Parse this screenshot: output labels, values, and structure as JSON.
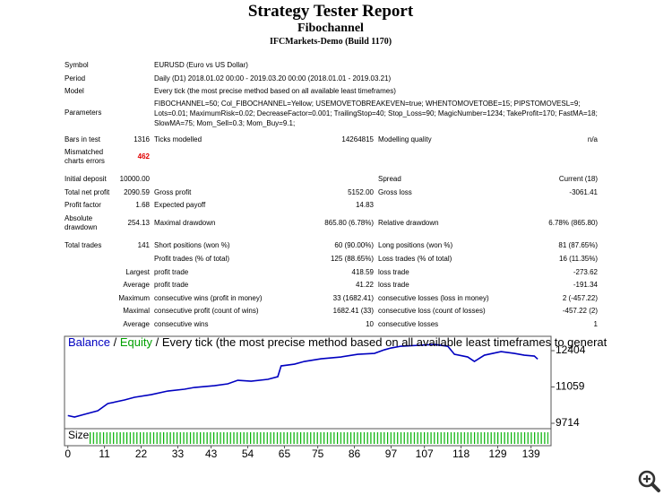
{
  "header": {
    "title": "Strategy Tester Report",
    "subtitle": "Fibochannel",
    "server": "IFCMarkets-Demo (Build 1170)"
  },
  "info": [
    {
      "label": "Symbol",
      "value": "EURUSD (Euro vs US Dollar)"
    },
    {
      "label": "Period",
      "value": "Daily (D1) 2018.01.02 00:00 - 2019.03.20 00:00 (2018.01.01 - 2019.03.21)"
    },
    {
      "label": "Model",
      "value": "Every tick (the most precise method based on all available least timeframes)"
    },
    {
      "label": "Parameters",
      "value": "FIBOCHANNEL=50; Col_FIBOCHANNEL=Yellow; USEMOVETOBREAKEVEN=true; WHENTOMOVETOBE=15; PIPSTOMOVESL=9; Lots=0.01; MaximumRisk=0.02; DecreaseFactor=0.001; TrailingStop=40; Stop_Loss=90; MagicNumber=1234; TakeProfit=170; FastMA=18; SlowMA=75; Mom_Sell=0.3; Mom_Buy=9.1;"
    }
  ],
  "rows": [
    {
      "c1": "Bars in test",
      "c2": "1316",
      "c3": "Ticks modelled",
      "c4": "14264815",
      "c5": "Modelling quality",
      "c6": "n/a"
    },
    {
      "c1": "Mismatched charts errors",
      "c2": "462"
    },
    {
      "c1": "Initial deposit",
      "c2": "10000.00",
      "c5": "Spread",
      "c6": "Current (18)"
    },
    {
      "c1": "Total net profit",
      "c2": "2090.59",
      "c3": "Gross profit",
      "c4": "5152.00",
      "c5": "Gross loss",
      "c6": "-3061.41"
    },
    {
      "c1": "Profit factor",
      "c2": "1.68",
      "c3": "Expected payoff",
      "c4": "14.83"
    },
    {
      "c1": "Absolute drawdown",
      "c2": "254.13",
      "c3": "Maximal drawdown",
      "c4": "865.80 (6.78%)",
      "c5": "Relative drawdown",
      "c6": "6.78% (865.80)"
    },
    {
      "c1": "Total trades",
      "c2": "141",
      "c3": "Short positions (won %)",
      "c4": "60 (90.00%)",
      "c5": "Long positions (won %)",
      "c6": "81 (87.65%)"
    },
    {
      "c3": "Profit trades (% of total)",
      "c4": "125 (88.65%)",
      "c5": "Loss trades (% of total)",
      "c6": "16 (11.35%)"
    },
    {
      "c2": "Largest",
      "c3": "profit trade",
      "c4": "418.59",
      "c5": "loss trade",
      "c6": "-273.62"
    },
    {
      "c2": "Average",
      "c3": "profit trade",
      "c4": "41.22",
      "c5": "loss trade",
      "c6": "-191.34"
    },
    {
      "c2": "Maximum",
      "c3": "consecutive wins (profit in money)",
      "c4": "33 (1682.41)",
      "c5": "consecutive losses (loss in money)",
      "c6": "2 (-457.22)"
    },
    {
      "c2": "Maximal",
      "c3": "consecutive profit (count of wins)",
      "c4": "1682.41 (33)",
      "c5": "consecutive loss (count of losses)",
      "c6": "-457.22 (2)"
    },
    {
      "c2": "Average",
      "c3": "consecutive wins",
      "c4": "10",
      "c5": "consecutive losses",
      "c6": "1"
    }
  ],
  "chart_data": {
    "type": "line",
    "separator": "/",
    "equity": {
      "name": "Equity",
      "color": "#00a000"
    },
    "model_text": "/ Every tick (the most precise method based on all available least timeframes to generat",
    "size_label": "Size",
    "series": [
      {
        "name": "Balance",
        "color": "#0000c0",
        "x": [
          0,
          2,
          5,
          9,
          12,
          17,
          20,
          25,
          30,
          35,
          38,
          44,
          48,
          51,
          55,
          60,
          63,
          64,
          68,
          71,
          76,
          82,
          87,
          92,
          95,
          97,
          100,
          105,
          110,
          114,
          116,
          120,
          122,
          125,
          130,
          134,
          137,
          140,
          141
        ],
        "values": [
          10000,
          9946,
          10046,
          10179,
          10444,
          10577,
          10677,
          10776,
          10909,
          10976,
          11042,
          11108,
          11175,
          11308,
          11274,
          11341,
          11440,
          11839,
          11905,
          12005,
          12104,
          12171,
          12270,
          12304,
          12436,
          12503,
          12570,
          12600,
          12636,
          12570,
          12270,
          12171,
          12005,
          12237,
          12370,
          12304,
          12237,
          12204,
          12090
        ]
      }
    ],
    "xlim": [
      -1,
      145
    ],
    "ylim": [
      9515,
      12936
    ],
    "xticks": [
      0,
      11,
      22,
      33,
      43,
      54,
      65,
      75,
      86,
      97,
      107,
      118,
      129,
      139
    ],
    "yticks": [
      9714,
      11059,
      12404
    ]
  }
}
